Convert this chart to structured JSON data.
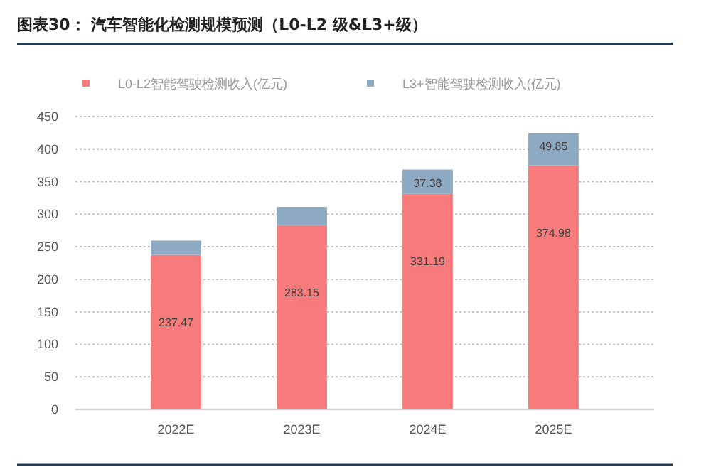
{
  "chart_data": {
    "type": "bar",
    "title": "图表30：  汽车智能化检测规模预测（L0-L2 级&L3+级）",
    "categories": [
      "2022E",
      "2023E",
      "2024E",
      "2025E"
    ],
    "stacked": true,
    "series": [
      {
        "name": "L0-L2智能驾驶检测收入(亿元)",
        "color": "#f77b7b",
        "values": [
          237.47,
          283.15,
          331.19,
          374.98
        ],
        "value_labels": [
          "237.47",
          "283.15",
          "331.19",
          "374.98"
        ]
      },
      {
        "name": "L3+智能驾驶检测收入(亿元)",
        "color": "#8eaac2",
        "values": [
          22,
          28,
          37.38,
          49.85
        ],
        "value_labels": [
          null,
          null,
          "37.38",
          "49.85"
        ]
      }
    ],
    "ylim": [
      0,
      450
    ],
    "yticks": [
      0,
      50,
      100,
      150,
      200,
      250,
      300,
      350,
      400,
      450
    ],
    "grid": "y",
    "legend": "top"
  }
}
